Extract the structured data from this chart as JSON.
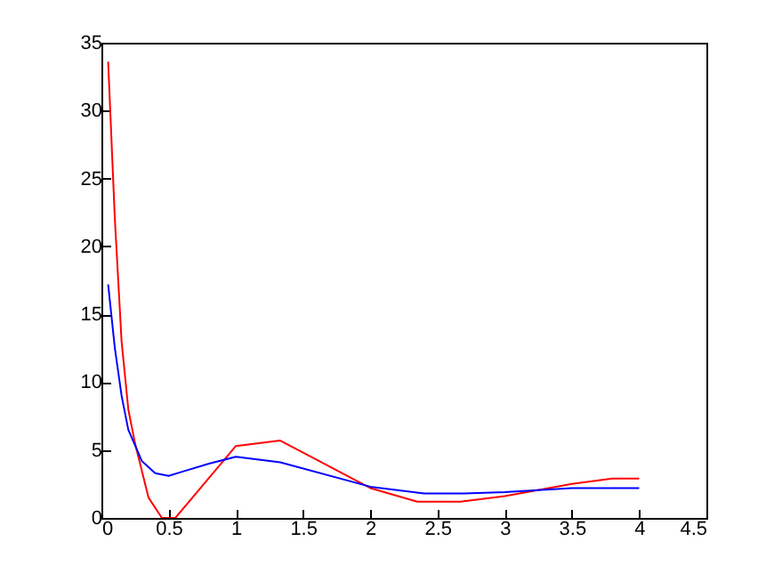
{
  "chart_data": {
    "type": "line",
    "xlim": [
      0,
      4.5
    ],
    "xticks": [
      0,
      0.5,
      1,
      1.5,
      2,
      2.5,
      3,
      3.5,
      4,
      4.5
    ],
    "ylim": [
      0,
      35
    ],
    "yticks": [
      0,
      5,
      10,
      15,
      20,
      25,
      30,
      35
    ],
    "grid": false,
    "line_style": "solid",
    "series": [
      {
        "color": "#ff0000",
        "x": [
          0.05,
          0.1,
          0.15,
          0.2,
          0.25,
          0.35,
          0.45,
          0.55,
          1.0,
          1.33,
          2.0,
          2.35,
          2.67,
          3.0,
          3.5,
          3.8,
          4.0
        ],
        "values": [
          33.6,
          22,
          13,
          8,
          5.5,
          1.5,
          0,
          0,
          5.3,
          5.7,
          2.2,
          1.2,
          1.2,
          1.6,
          2.5,
          2.9,
          2.9
        ]
      },
      {
        "color": "#0000ff",
        "x": [
          0.05,
          0.1,
          0.15,
          0.2,
          0.3,
          0.4,
          0.5,
          0.6,
          0.8,
          1.0,
          1.33,
          2.0,
          2.4,
          2.7,
          3.0,
          3.5,
          4.0
        ],
        "values": [
          17.2,
          12.5,
          9,
          6.5,
          4.2,
          3.3,
          3.1,
          3.4,
          4.0,
          4.5,
          4.1,
          2.3,
          1.8,
          1.8,
          1.9,
          2.2,
          2.2
        ]
      }
    ]
  }
}
